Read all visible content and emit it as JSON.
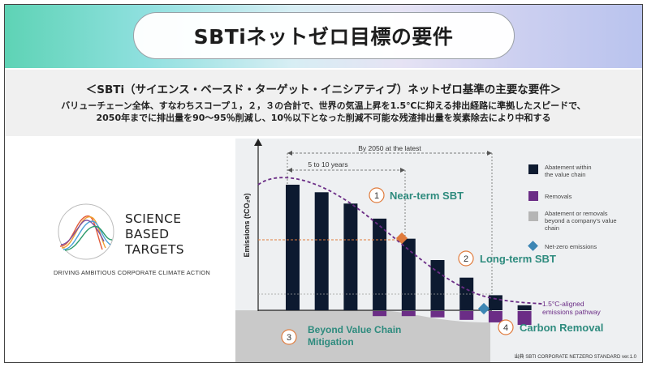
{
  "title": "SBTiネットゼロ目標の要件",
  "requirements": {
    "heading": "＜SBTi（サイエンス・ベースド・ターゲット・イニシアティブ）ネットゼロ基準の主要な要件＞",
    "line1": "バリューチェーン全体、すなわちスコープ１，２，３の合計で、世界の気温上昇を1.5℃に抑える排出経路に準拠したスピードで、",
    "line2": "2050年までに排出量を90～95％削減し、10％以下となった削減不可能な残渣排出量を炭素除去により中和する"
  },
  "logo": {
    "line1": "SCIENCE",
    "line2": "BASED",
    "line3": "TARGETS",
    "tagline": "DRIVING AMBITIOUS CORPORATE CLIMATE ACTION"
  },
  "colors": {
    "abatement": "#0d1a30",
    "removals": "#6b2d86",
    "beyond": "#b5b5b5",
    "netzero": "#3c86b4",
    "near_term_marker": "#e07b3c",
    "pathway": "#6b2d86",
    "teal_text": "#2e8b7e"
  },
  "chart_data": {
    "type": "bar",
    "ylabel": "Emissions (tCO₂e)",
    "abatement_values": [
      100,
      94,
      85,
      73,
      57,
      40,
      26,
      12,
      4
    ],
    "removal_values": [
      0,
      0,
      0,
      4,
      4,
      5,
      7,
      9,
      11
    ],
    "pathway_label_line1": "1.5°C-aligned",
    "pathway_label_line2": "emissions pathway",
    "span_2050": "By 2050 at the latest",
    "span_near": "5 to 10 years",
    "callouts": [
      {
        "num": "1",
        "label": "Near-term SBT"
      },
      {
        "num": "2",
        "label": "Long-term SBT"
      },
      {
        "num": "3",
        "label": "Beyond Value Chain Mitigation"
      },
      {
        "num": "4",
        "label": "Carbon Removal"
      }
    ],
    "callout3_line1": "Beyond Value Chain",
    "callout3_line2": "Mitigation",
    "legend": [
      {
        "key": "abatement",
        "lines": [
          "Abatement within",
          "the value chain"
        ]
      },
      {
        "key": "removals",
        "lines": [
          "Removals"
        ]
      },
      {
        "key": "beyond",
        "lines": [
          "Abatement or removals",
          "beyond a company's value",
          "chain"
        ]
      },
      {
        "key": "netzero",
        "lines": [
          "Net-zero emissions"
        ]
      }
    ],
    "source": "出典 SBTI CORPORATE NETZERO STANDARD ver.1.0"
  }
}
